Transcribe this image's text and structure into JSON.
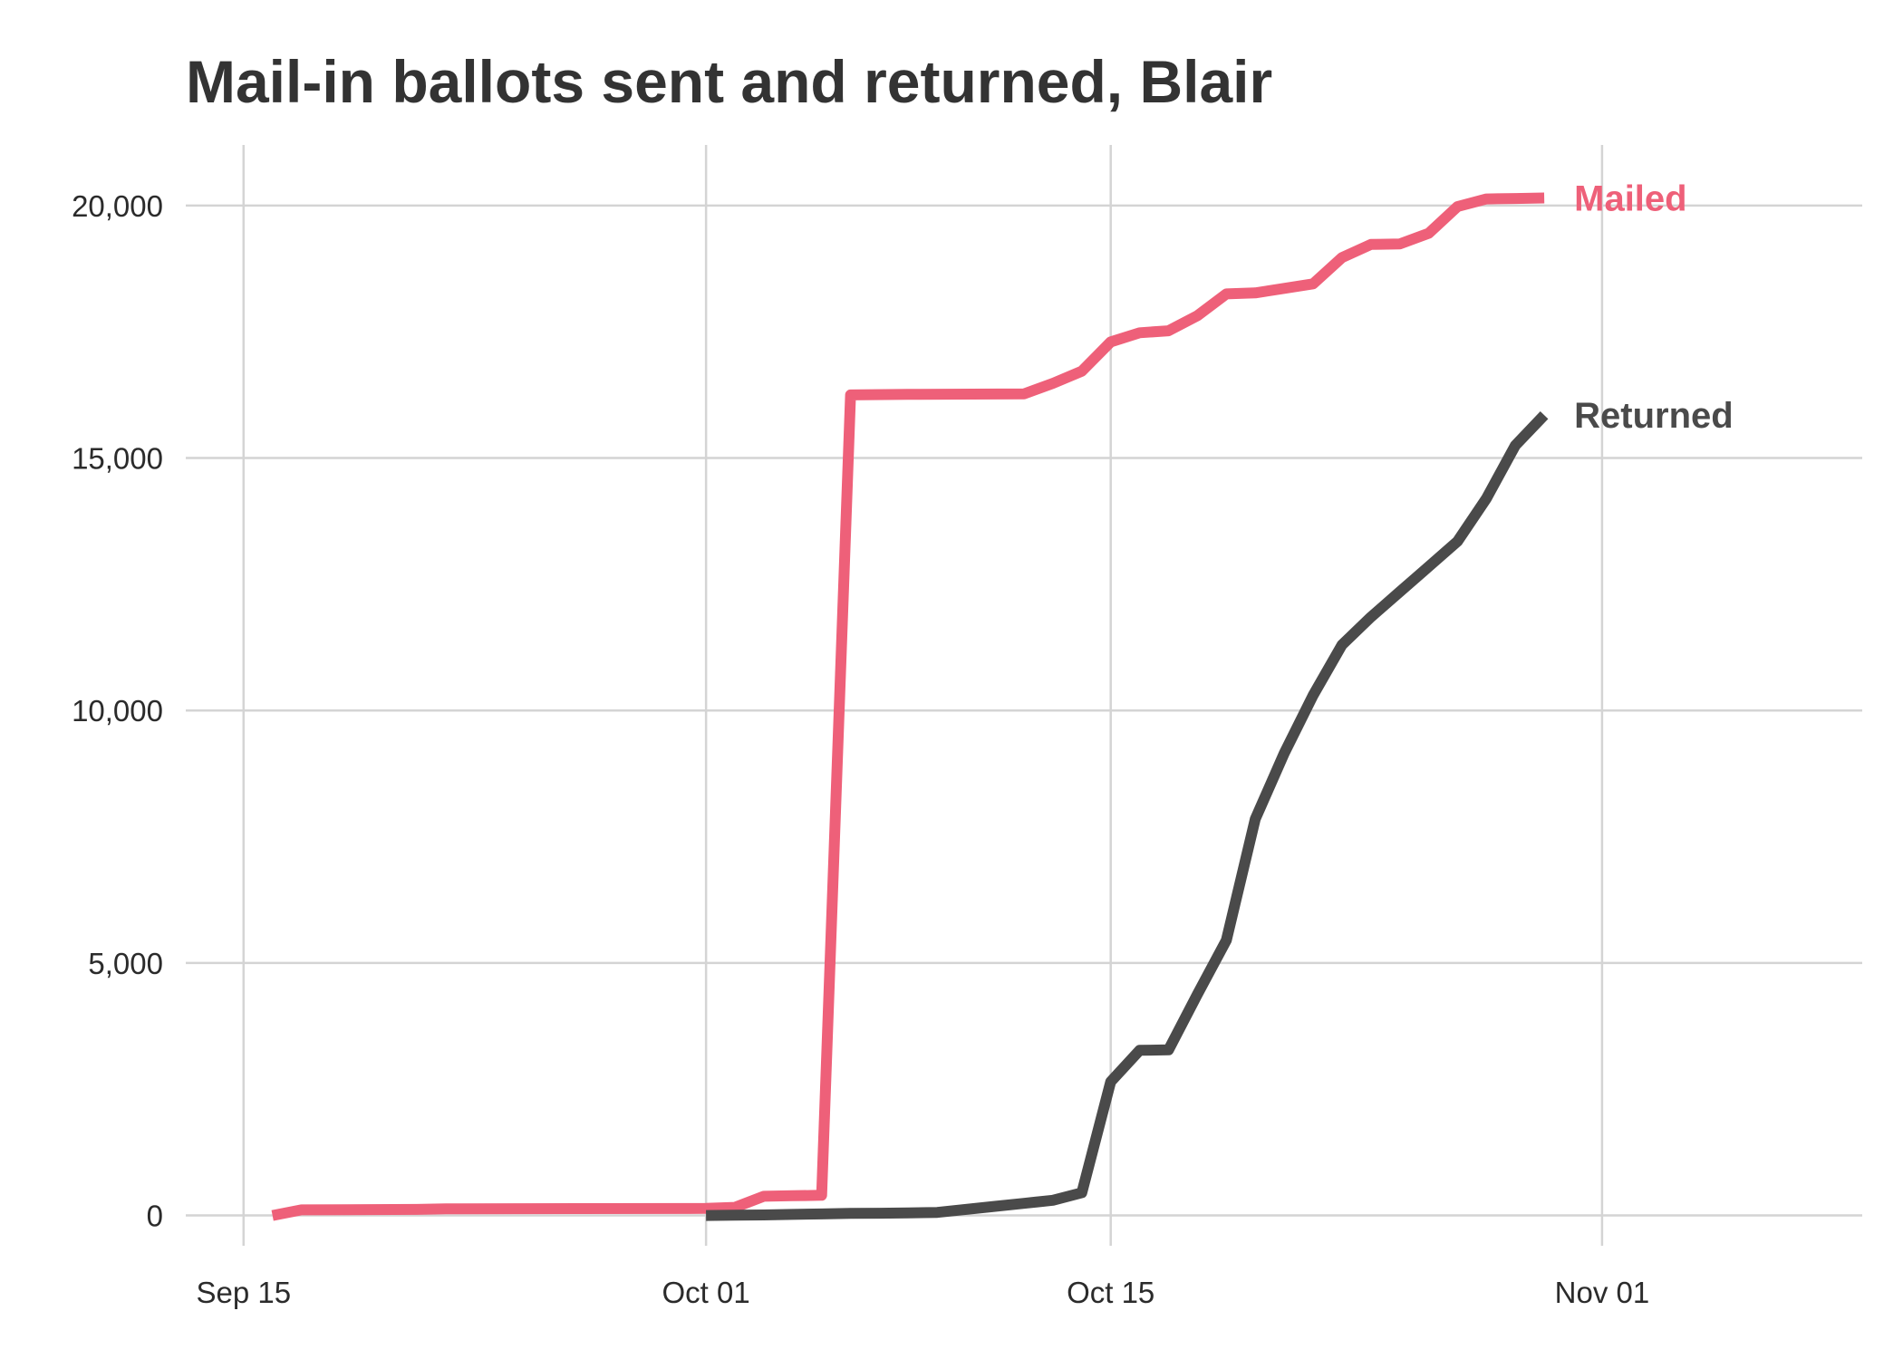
{
  "chart_data": {
    "type": "line",
    "title": "Mail-in ballots sent and returned, Blair",
    "xlabel": "",
    "ylabel": "",
    "x_type": "date",
    "xlim": [
      "2020-09-13",
      "2020-11-10"
    ],
    "ylim": [
      -600,
      21200
    ],
    "x_ticks": [
      {
        "date": "2020-09-15",
        "label": "Sep 15"
      },
      {
        "date": "2020-10-01",
        "label": "Oct 01"
      },
      {
        "date": "2020-10-15",
        "label": "Oct 15"
      },
      {
        "date": "2020-11-01",
        "label": "Nov 01"
      }
    ],
    "y_ticks": [
      {
        "value": 0,
        "label": "0"
      },
      {
        "value": 5000,
        "label": "5,000"
      },
      {
        "value": 10000,
        "label": "10,000"
      },
      {
        "value": 15000,
        "label": "15,000"
      },
      {
        "value": 20000,
        "label": "20,000"
      }
    ],
    "grid": true,
    "legend": "none",
    "series": [
      {
        "name": "Mailed",
        "color": "#EE6079",
        "points": [
          {
            "x": "2020-09-16",
            "y": 0
          },
          {
            "x": "2020-09-17",
            "y": 110
          },
          {
            "x": "2020-09-21",
            "y": 120
          },
          {
            "x": "2020-09-22",
            "y": 130
          },
          {
            "x": "2020-10-01",
            "y": 140
          },
          {
            "x": "2020-10-02",
            "y": 160
          },
          {
            "x": "2020-10-03",
            "y": 380
          },
          {
            "x": "2020-10-04",
            "y": 390
          },
          {
            "x": "2020-10-05",
            "y": 400
          },
          {
            "x": "2020-10-06",
            "y": 16250
          },
          {
            "x": "2020-10-08",
            "y": 16260
          },
          {
            "x": "2020-10-12",
            "y": 16270
          },
          {
            "x": "2020-10-13",
            "y": 16480
          },
          {
            "x": "2020-10-14",
            "y": 16720
          },
          {
            "x": "2020-10-15",
            "y": 17300
          },
          {
            "x": "2020-10-16",
            "y": 17480
          },
          {
            "x": "2020-10-17",
            "y": 17520
          },
          {
            "x": "2020-10-18",
            "y": 17820
          },
          {
            "x": "2020-10-19",
            "y": 18250
          },
          {
            "x": "2020-10-20",
            "y": 18270
          },
          {
            "x": "2020-10-21",
            "y": 18360
          },
          {
            "x": "2020-10-22",
            "y": 18450
          },
          {
            "x": "2020-10-23",
            "y": 18970
          },
          {
            "x": "2020-10-24",
            "y": 19230
          },
          {
            "x": "2020-10-25",
            "y": 19240
          },
          {
            "x": "2020-10-26",
            "y": 19450
          },
          {
            "x": "2020-10-27",
            "y": 19980
          },
          {
            "x": "2020-10-28",
            "y": 20130
          },
          {
            "x": "2020-10-29",
            "y": 20140
          },
          {
            "x": "2020-10-30",
            "y": 20150
          }
        ]
      },
      {
        "name": "Returned",
        "color": "#4A4A4A",
        "points": [
          {
            "x": "2020-10-01",
            "y": 0
          },
          {
            "x": "2020-10-02",
            "y": 5
          },
          {
            "x": "2020-10-03",
            "y": 10
          },
          {
            "x": "2020-10-04",
            "y": 20
          },
          {
            "x": "2020-10-05",
            "y": 30
          },
          {
            "x": "2020-10-06",
            "y": 40
          },
          {
            "x": "2020-10-07",
            "y": 45
          },
          {
            "x": "2020-10-08",
            "y": 50
          },
          {
            "x": "2020-10-09",
            "y": 60
          },
          {
            "x": "2020-10-10",
            "y": 120
          },
          {
            "x": "2020-10-11",
            "y": 180
          },
          {
            "x": "2020-10-12",
            "y": 240
          },
          {
            "x": "2020-10-13",
            "y": 300
          },
          {
            "x": "2020-10-14",
            "y": 450
          },
          {
            "x": "2020-10-15",
            "y": 2650
          },
          {
            "x": "2020-10-16",
            "y": 3270
          },
          {
            "x": "2020-10-17",
            "y": 3280
          },
          {
            "x": "2020-10-18",
            "y": 4380
          },
          {
            "x": "2020-10-19",
            "y": 5450
          },
          {
            "x": "2020-10-20",
            "y": 7850
          },
          {
            "x": "2020-10-21",
            "y": 9150
          },
          {
            "x": "2020-10-22",
            "y": 10300
          },
          {
            "x": "2020-10-23",
            "y": 11300
          },
          {
            "x": "2020-10-24",
            "y": 11850
          },
          {
            "x": "2020-10-25",
            "y": 12350
          },
          {
            "x": "2020-10-26",
            "y": 12850
          },
          {
            "x": "2020-10-27",
            "y": 13350
          },
          {
            "x": "2020-10-28",
            "y": 14200
          },
          {
            "x": "2020-10-29",
            "y": 15250
          },
          {
            "x": "2020-10-30",
            "y": 15850
          }
        ]
      }
    ]
  }
}
